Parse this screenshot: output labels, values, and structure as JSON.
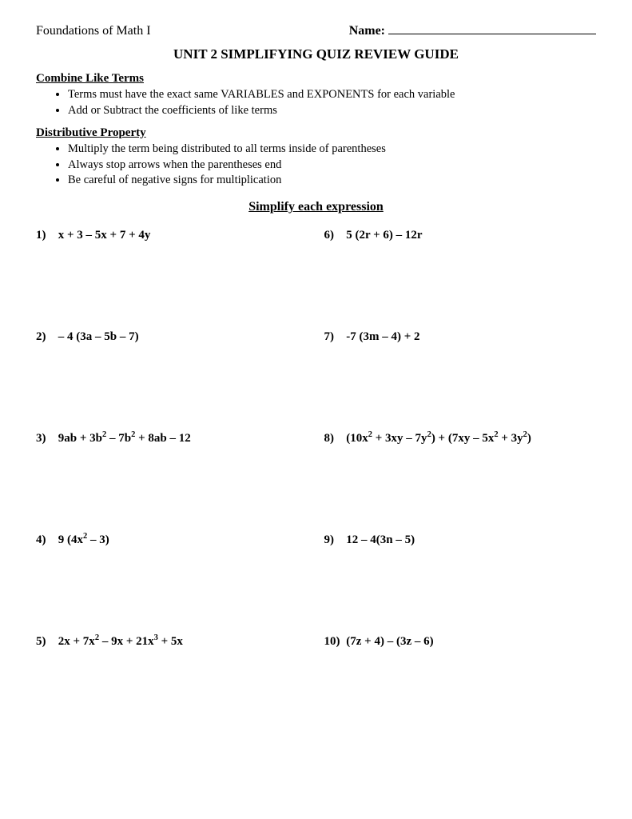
{
  "header": {
    "course": "Foundations of Math I",
    "name_label": "Name:"
  },
  "title": "UNIT 2 SIMPLIFYING QUIZ REVIEW GUIDE",
  "sections": [
    {
      "heading": "Combine Like Terms",
      "bullets": [
        "Terms must have the exact same VARIABLES and EXPONENTS for each variable",
        "Add or Subtract the coefficients of like terms"
      ]
    },
    {
      "heading": "Distributive Property",
      "bullets": [
        "Multiply the term being distributed to all terms inside of parentheses",
        "Always stop arrows when the parentheses end",
        "Be careful of negative signs for multiplication"
      ]
    }
  ],
  "instruction": "Simplify each expression",
  "problems": {
    "p1": {
      "num": "1)",
      "expr": "x + 3 – 5x + 7 + 4y"
    },
    "p2": {
      "num": "2)",
      "expr": "– 4 (3a – 5b – 7)"
    },
    "p3": {
      "num": "3)",
      "expr_html": "9ab + 3b<sup>2</sup> – 7b<sup>2</sup> + 8ab – 12"
    },
    "p4": {
      "num": "4)",
      "expr_html": "9 (4x<sup>2</sup> – 3)"
    },
    "p5": {
      "num": "5)",
      "expr_html": "2x + 7x<sup>2</sup> – 9x + 21x<sup>3</sup> + 5x"
    },
    "p6": {
      "num": "6)",
      "expr": "5 (2r + 6) – 12r"
    },
    "p7": {
      "num": "7)",
      "expr": "-7 (3m – 4) + 2"
    },
    "p8": {
      "num": "8)",
      "expr_html": "(10x<sup>2</sup> + 3xy – 7y<sup>2</sup>) + (7xy – 5x<sup>2</sup> + 3y<sup>2</sup>)"
    },
    "p9": {
      "num": "9)",
      "expr": "12 – 4(3n – 5)"
    },
    "p10": {
      "num": "10)",
      "expr": "(7z + 4) – (3z – 6)"
    }
  }
}
